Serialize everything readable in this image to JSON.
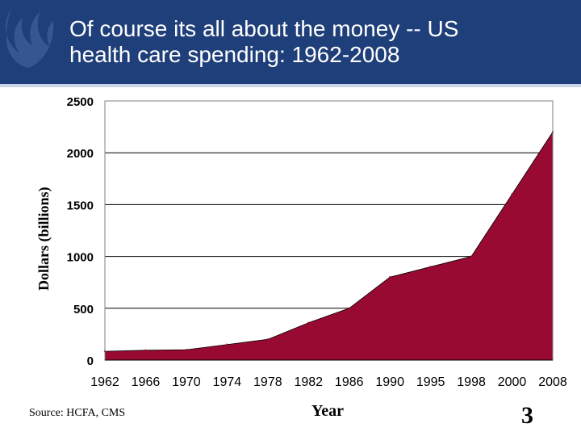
{
  "slide": {
    "title_line1": "Of course its all about the money --  US",
    "title_line2": "health care spending: 1962-2008",
    "source": "Source: HCFA, CMS",
    "page_number": "3",
    "colors": {
      "header": "#1f3f7a",
      "area": "#990a32"
    },
    "logo_icon": "flame-logo-icon"
  },
  "chart_data": {
    "type": "area",
    "categories": [
      "1962",
      "1966",
      "1970",
      "1974",
      "1978",
      "1982",
      "1986",
      "1990",
      "1995",
      "1998",
      "2000",
      "2008"
    ],
    "values": [
      85,
      95,
      100,
      150,
      200,
      360,
      500,
      800,
      900,
      1000,
      1600,
      2200
    ],
    "xlabel": "Year",
    "ylabel": "Dollars (billions)",
    "ylim": [
      0,
      2500
    ],
    "yticks": [
      0,
      500,
      1000,
      1500,
      2000,
      2500
    ],
    "grid": true,
    "legend": "none"
  }
}
